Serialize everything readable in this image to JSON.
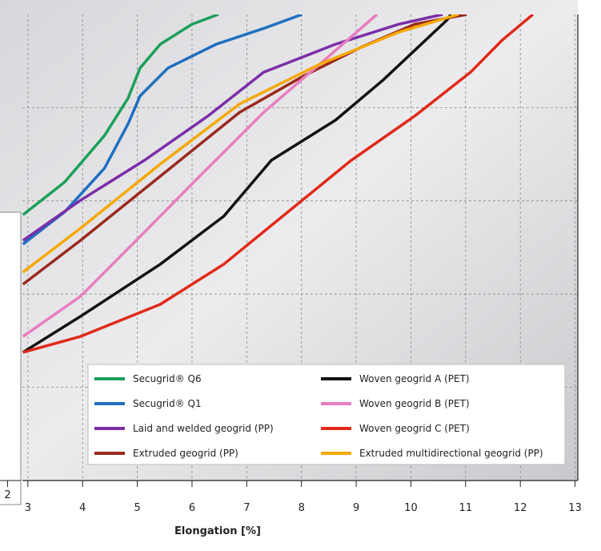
{
  "chart_data": [
    {
      "type": "line",
      "x_label": "Elongation [%]",
      "xlim": [
        2.9,
        13.05
      ],
      "xticks": [
        3,
        4,
        5,
        6,
        7,
        8,
        9,
        10,
        11,
        12,
        13
      ],
      "ylim": [
        0,
        100
      ],
      "grid": true,
      "legend_position": "lower right",
      "series": [
        {
          "name": "Secugrid® Q6",
          "color": "#1ba05a",
          "x": [
            2.91,
            3.67,
            4.4,
            4.83,
            5.05,
            5.42,
            6.0,
            6.48
          ],
          "values": [
            57,
            64,
            74,
            82,
            88.5,
            93.6,
            97.9,
            100
          ]
        },
        {
          "name": "Secugrid® Q1",
          "color": "#1f6fc0",
          "x": [
            2.91,
            3.67,
            4.4,
            4.83,
            5.05,
            5.56,
            6.44,
            7.31,
            8.01
          ],
          "values": [
            50.7,
            57.6,
            67,
            76.5,
            82.5,
            88.5,
            93.6,
            97,
            100
          ]
        },
        {
          "name": "Laid and welded geogrid (PP)",
          "color": "#7b2fa8",
          "x": [
            2.91,
            3.96,
            5.13,
            6.29,
            7.31,
            8.62,
            9.78,
            10.58
          ],
          "values": [
            51.5,
            60.1,
            68.7,
            78.2,
            87.6,
            93.6,
            97.9,
            100
          ]
        },
        {
          "name": "Extruded geogrid (PP)",
          "color": "#9a2a1e",
          "x": [
            2.91,
            3.96,
            5.42,
            6.87,
            8.04,
            9.06,
            10.07,
            11.02
          ],
          "values": [
            42.1,
            51.5,
            65.3,
            79,
            86.8,
            92.8,
            97.9,
            100
          ]
        },
        {
          "name": "Woven geogrid A (PET)",
          "color": "#111111",
          "x": [
            2.91,
            3.96,
            5.42,
            6.58,
            7.45,
            8.62,
            9.49,
            10.66,
            10.73
          ],
          "values": [
            27.5,
            35.2,
            46.4,
            56.7,
            68.7,
            77.3,
            85.9,
            98.8,
            100
          ]
        },
        {
          "name": "Woven geogrid B (PET)",
          "color": "#e87dc0",
          "x": [
            2.91,
            3.96,
            4.98,
            6.14,
            7.31,
            8.33,
            9.38
          ],
          "values": [
            30.9,
            39.5,
            51.5,
            65.3,
            79,
            89.3,
            100
          ]
        },
        {
          "name": "Woven geogrid C (PET)",
          "color": "#e02a1a",
          "x": [
            2.91,
            3.96,
            5.42,
            6.58,
            7.75,
            8.91,
            10.07,
            11.09,
            11.67,
            12.23
          ],
          "values": [
            27.5,
            30.9,
            37.8,
            46.4,
            57.6,
            68.7,
            78.2,
            87.6,
            94.5,
            100
          ]
        },
        {
          "name": "Extruded multidirectional geogrid (PP)",
          "color": "#f5a800",
          "x": [
            2.91,
            3.96,
            5.42,
            6.87,
            8.33,
            9.78,
            10.87
          ],
          "values": [
            44.7,
            54.1,
            67.9,
            80.8,
            89.3,
            96.2,
            100
          ]
        }
      ]
    },
    {
      "type": "axis",
      "xlim": [
        1.8,
        2.35
      ],
      "xticks": [
        2
      ]
    }
  ]
}
